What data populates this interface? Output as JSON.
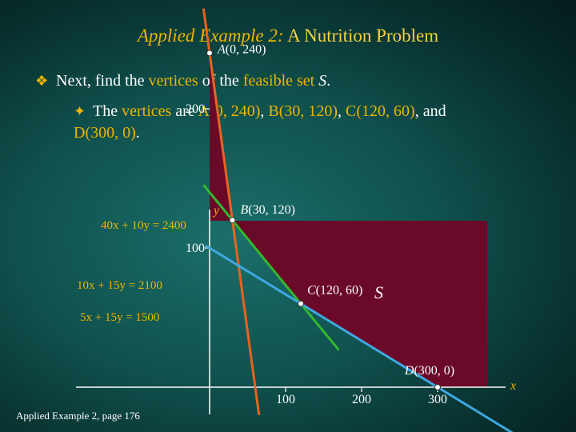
{
  "title": {
    "lead": "Applied Example 2:",
    "main": "A Nutrition Problem"
  },
  "bullet1": {
    "text_a": "Next, find the ",
    "hl_a": "vertices",
    "text_b": " of the ",
    "hl_b": "feasible set",
    "text_c": " ",
    "set_name": "S",
    "text_d": "."
  },
  "bullet2": {
    "text_a": "The ",
    "hl_a": "vertices",
    "text_b": " are ",
    "a": "A(0, 240)",
    "sep1": ", ",
    "b": "B(30, 120)",
    "sep2": ", ",
    "c": "C(120, 60)",
    "text_c": ", and",
    "d": "D(300, 0)",
    "text_d": "."
  },
  "graph": {
    "x_axis_name": "x",
    "y_axis_name": "y",
    "region_label": "S",
    "x_ticks": [
      "100",
      "200",
      "300"
    ],
    "y_ticks": [
      "100",
      "200"
    ],
    "equations": [
      "40x + 10y = 2400",
      "10x + 15y = 2100",
      "5x + 15y = 1500"
    ],
    "vertices": [
      {
        "label": "A(0, 240)",
        "x": 0,
        "y": 240
      },
      {
        "label": "B(30, 120)",
        "x": 30,
        "y": 120
      },
      {
        "label": "C(120, 60)",
        "x": 120,
        "y": 60
      },
      {
        "label": "D(300, 0)",
        "x": 300,
        "y": 0
      }
    ],
    "colors": {
      "region": "#6a0a28",
      "line1": "#e8641e",
      "line2": "#33b82e",
      "line3": "#3fa8e0",
      "axis": "#ffffff"
    }
  },
  "footer": "Applied Example 2, page 176"
}
